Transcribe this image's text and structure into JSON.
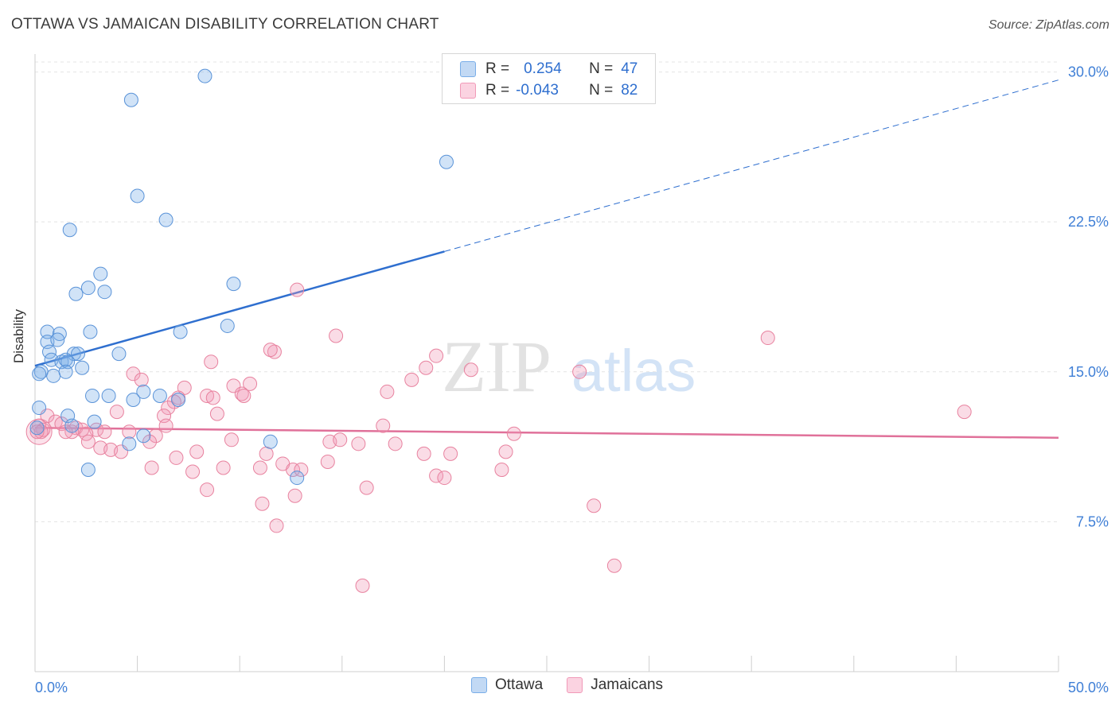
{
  "title": "OTTAWA VS JAMAICAN DISABILITY CORRELATION CHART",
  "source": "Source: ZipAtlas.com",
  "watermark": {
    "zip": "ZIP",
    "atlas": "atlas"
  },
  "legend": {
    "rows": [
      {
        "r_label": "R =",
        "r_value": "0.254",
        "n_label": "N =",
        "n_value": "47",
        "color": "#7aaee8"
      },
      {
        "r_label": "R =",
        "r_value": "-0.043",
        "n_label": "N =",
        "n_value": "82",
        "color": "#f19ab8"
      }
    ]
  },
  "bottom_legend": [
    {
      "label": "Ottawa",
      "color": "#7aaee8"
    },
    {
      "label": "Jamaicans",
      "color": "#f19ab8"
    }
  ],
  "chart_data": {
    "type": "scatter",
    "ylabel": "Disability",
    "x_tick_labels": [
      "0.0%",
      "50.0%"
    ],
    "y_tick_labels": [
      "7.5%",
      "15.0%",
      "22.5%",
      "30.0%"
    ],
    "y_ticks": [
      7.5,
      15.0,
      22.5,
      30.0
    ],
    "xlim": [
      0,
      50
    ],
    "ylim": [
      0,
      30.5
    ],
    "grid": true,
    "series": [
      {
        "name": "Ottawa",
        "color": "#7aaee8",
        "stroke": "#5a93d8",
        "trend": {
          "x0": 0,
          "y0": 15.3,
          "x1": 50,
          "y1": 29.6,
          "solid_until": 20
        },
        "points": [
          [
            8.3,
            29.8
          ],
          [
            4.7,
            28.6
          ],
          [
            20.1,
            25.5
          ],
          [
            5.0,
            23.8
          ],
          [
            6.4,
            22.6
          ],
          [
            1.7,
            22.1
          ],
          [
            3.2,
            19.9
          ],
          [
            2.6,
            19.2
          ],
          [
            3.4,
            19.0
          ],
          [
            2.0,
            18.9
          ],
          [
            9.7,
            19.4
          ],
          [
            9.4,
            17.3
          ],
          [
            0.6,
            17.0
          ],
          [
            1.2,
            16.9
          ],
          [
            2.7,
            17.0
          ],
          [
            7.1,
            17.0
          ],
          [
            0.6,
            16.5
          ],
          [
            1.1,
            16.6
          ],
          [
            0.7,
            16.0
          ],
          [
            1.9,
            15.9
          ],
          [
            2.1,
            15.9
          ],
          [
            4.1,
            15.9
          ],
          [
            0.8,
            15.6
          ],
          [
            1.3,
            15.5
          ],
          [
            1.5,
            15.6
          ],
          [
            1.6,
            15.5
          ],
          [
            2.3,
            15.2
          ],
          [
            0.3,
            15.0
          ],
          [
            0.9,
            14.8
          ],
          [
            1.5,
            15.0
          ],
          [
            0.2,
            14.9
          ],
          [
            2.8,
            13.8
          ],
          [
            3.6,
            13.8
          ],
          [
            5.3,
            14.0
          ],
          [
            6.1,
            13.8
          ],
          [
            7.0,
            13.6
          ],
          [
            4.8,
            13.6
          ],
          [
            0.2,
            13.2
          ],
          [
            1.6,
            12.8
          ],
          [
            1.8,
            12.3
          ],
          [
            2.9,
            12.5
          ],
          [
            0.1,
            12.2
          ],
          [
            5.3,
            11.8
          ],
          [
            4.6,
            11.4
          ],
          [
            11.5,
            11.5
          ],
          [
            2.6,
            10.1
          ],
          [
            12.8,
            9.7
          ]
        ]
      },
      {
        "name": "Jamaicans",
        "color": "#f19ab8",
        "stroke": "#e8829f",
        "trend": {
          "x0": 0,
          "y0": 12.2,
          "x1": 50,
          "y1": 11.7,
          "solid_until": 50
        },
        "points": [
          [
            12.8,
            19.1
          ],
          [
            14.7,
            16.8
          ],
          [
            35.8,
            16.7
          ],
          [
            11.7,
            16.0
          ],
          [
            11.5,
            16.1
          ],
          [
            19.6,
            15.8
          ],
          [
            8.6,
            15.5
          ],
          [
            19.1,
            15.2
          ],
          [
            21.3,
            15.1
          ],
          [
            26.6,
            15.0
          ],
          [
            4.8,
            14.9
          ],
          [
            5.2,
            14.6
          ],
          [
            9.7,
            14.3
          ],
          [
            10.5,
            14.4
          ],
          [
            18.4,
            14.6
          ],
          [
            7.3,
            14.2
          ],
          [
            10.1,
            13.9
          ],
          [
            10.2,
            13.8
          ],
          [
            17.2,
            14.0
          ],
          [
            7.0,
            13.7
          ],
          [
            8.4,
            13.8
          ],
          [
            8.7,
            13.7
          ],
          [
            6.8,
            13.5
          ],
          [
            6.5,
            13.2
          ],
          [
            4.0,
            13.0
          ],
          [
            8.9,
            12.9
          ],
          [
            6.3,
            12.8
          ],
          [
            45.4,
            13.0
          ],
          [
            0.6,
            12.8
          ],
          [
            1.0,
            12.5
          ],
          [
            1.3,
            12.4
          ],
          [
            2.0,
            12.2
          ],
          [
            0.2,
            12.3
          ],
          [
            0.4,
            12.1
          ],
          [
            2.3,
            12.1
          ],
          [
            1.8,
            12.0
          ],
          [
            3.0,
            12.1
          ],
          [
            2.5,
            11.9
          ],
          [
            6.4,
            12.3
          ],
          [
            4.6,
            12.0
          ],
          [
            5.9,
            11.8
          ],
          [
            17.0,
            12.3
          ],
          [
            23.4,
            11.9
          ],
          [
            0.3,
            12.0
          ],
          [
            1.5,
            12.0
          ],
          [
            2.6,
            11.5
          ],
          [
            5.6,
            11.5
          ],
          [
            9.6,
            11.6
          ],
          [
            14.4,
            11.5
          ],
          [
            14.9,
            11.6
          ],
          [
            15.8,
            11.4
          ],
          [
            17.6,
            11.4
          ],
          [
            3.2,
            11.2
          ],
          [
            3.7,
            11.1
          ],
          [
            4.2,
            11.0
          ],
          [
            7.9,
            11.0
          ],
          [
            11.3,
            10.9
          ],
          [
            19.0,
            10.9
          ],
          [
            20.3,
            10.9
          ],
          [
            23.0,
            11.0
          ],
          [
            14.3,
            10.5
          ],
          [
            12.1,
            10.4
          ],
          [
            6.9,
            10.7
          ],
          [
            9.2,
            10.2
          ],
          [
            11.0,
            10.2
          ],
          [
            5.7,
            10.2
          ],
          [
            7.7,
            10.0
          ],
          [
            12.6,
            10.1
          ],
          [
            22.8,
            10.1
          ],
          [
            19.6,
            9.8
          ],
          [
            20.0,
            9.7
          ],
          [
            16.2,
            9.2
          ],
          [
            8.4,
            9.1
          ],
          [
            12.7,
            8.8
          ],
          [
            11.1,
            8.4
          ],
          [
            27.3,
            8.3
          ],
          [
            11.8,
            7.3
          ],
          [
            28.3,
            5.3
          ],
          [
            16.0,
            4.3
          ],
          [
            0.1,
            12.0
          ],
          [
            3.4,
            12.0
          ],
          [
            13.0,
            10.1
          ]
        ]
      }
    ]
  }
}
